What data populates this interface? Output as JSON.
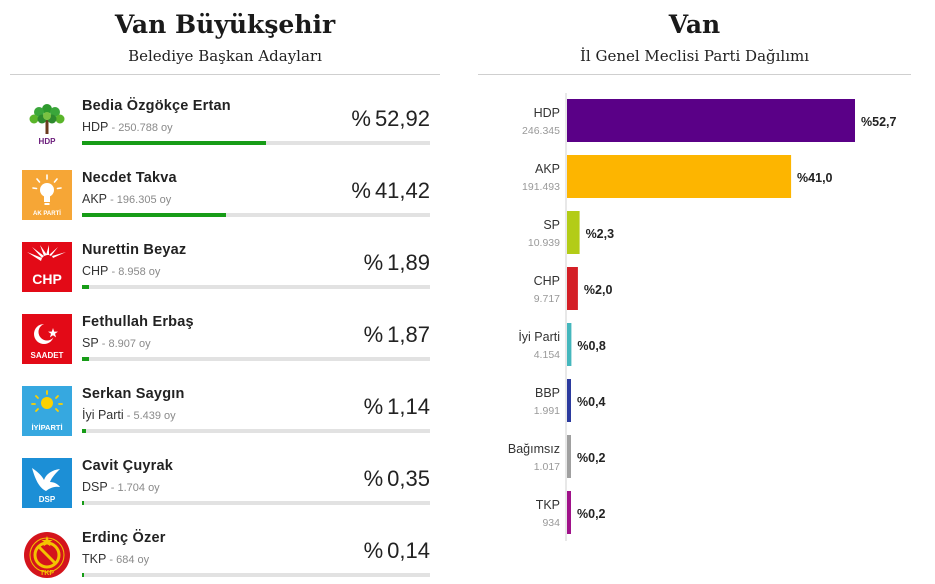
{
  "left_panel": {
    "title": "Van Büyükşehir",
    "subtitle": "Belediye Başkan Adayları"
  },
  "candidates": [
    {
      "name": "Bedia Özgökçe Ertan",
      "party": "HDP",
      "votes": "250.788 oy",
      "percent": 52.92,
      "percent_label": "52,92",
      "logo": "hdp-logo",
      "logo_label": "HDP",
      "color": "#179c17"
    },
    {
      "name": "Necdet Takva",
      "party": "AKP",
      "votes": "196.305 oy",
      "percent": 41.42,
      "percent_label": "41,42",
      "logo": "akp-logo",
      "logo_label": "AK PARTİ",
      "color": "#179c17"
    },
    {
      "name": "Nurettin Beyaz",
      "party": "CHP",
      "votes": "8.958 oy",
      "percent": 1.89,
      "percent_label": "1,89",
      "logo": "chp-logo",
      "logo_label": "CHP",
      "color": "#179c17"
    },
    {
      "name": "Fethullah Erbaş",
      "party": "SP",
      "votes": "8.907 oy",
      "percent": 1.87,
      "percent_label": "1,87",
      "logo": "sp-logo",
      "logo_label": "SAADET",
      "color": "#179c17"
    },
    {
      "name": "Serkan Saygın",
      "party": "İyi Parti",
      "votes": "5.439 oy",
      "percent": 1.14,
      "percent_label": "1,14",
      "logo": "iyi-logo",
      "logo_label": "İYİPARTİ",
      "color": "#179c17"
    },
    {
      "name": "Cavit Çuyrak",
      "party": "DSP",
      "votes": "1.704 oy",
      "percent": 0.35,
      "percent_label": "0,35",
      "logo": "dsp-logo",
      "logo_label": "DSP",
      "color": "#179c17"
    },
    {
      "name": "Erdinç Özer",
      "party": "TKP",
      "votes": "684 oy",
      "percent": 0.14,
      "percent_label": "0,14",
      "logo": "tkp-logo",
      "logo_label": "TKP",
      "color": "#179c17"
    }
  ],
  "percent_prefix": "%",
  "chart_data": {
    "type": "bar",
    "orientation": "horizontal",
    "title": "Van",
    "subtitle": "İl Genel Meclisi Parti Dağılımı",
    "xlim": [
      0,
      52.7
    ],
    "categories": [
      "HDP",
      "AKP",
      "SP",
      "İyi Parti",
      "CHP",
      "BBP",
      "Bağımsız",
      "TKP"
    ],
    "rows": [
      {
        "party": "HDP",
        "votes": "246.345",
        "value": 52.7,
        "label": "%52,7",
        "color": "#5a0087"
      },
      {
        "party": "AKP",
        "votes": "191.493",
        "value": 41.0,
        "label": "%41,0",
        "color": "#fdb500"
      },
      {
        "party": "SP",
        "votes": "10.939",
        "value": 2.3,
        "label": "%2,3",
        "color": "#b3cc17"
      },
      {
        "party": "CHP",
        "votes": "9.717",
        "value": 2.0,
        "label": "%2,0",
        "color": "#d41f26"
      },
      {
        "party": "İyi Parti",
        "votes": "4.154",
        "value": 0.8,
        "label": "%0,8",
        "color": "#45b7bd"
      },
      {
        "party": "BBP",
        "votes": "1.991",
        "value": 0.4,
        "label": "%0,4",
        "color": "#2b3a9e"
      },
      {
        "party": "Bağımsız",
        "votes": "1.017",
        "value": 0.2,
        "label": "%0,2",
        "color": "#a0a0a0"
      },
      {
        "party": "TKP",
        "votes": "934",
        "value": 0.2,
        "label": "%0,2",
        "color": "#a0128a"
      }
    ]
  }
}
